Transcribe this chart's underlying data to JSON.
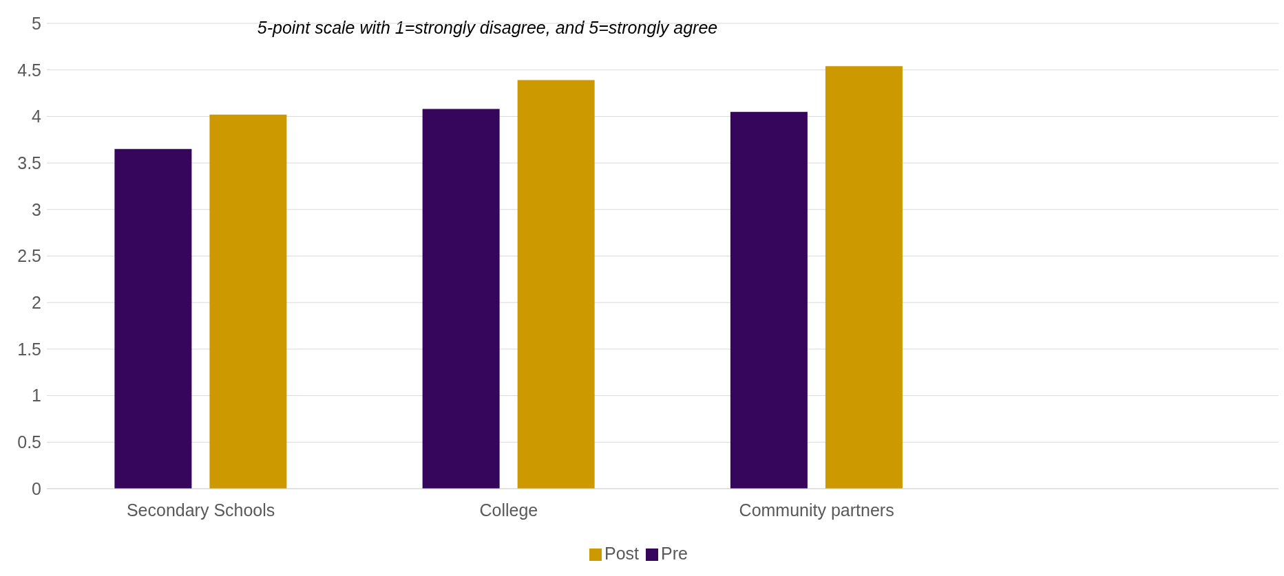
{
  "chart_data": {
    "type": "bar",
    "subtitle": "5-point scale with 1=strongly disagree, and 5=strongly agree",
    "categories": [
      "Secondary  Schools",
      "College",
      "Community  partners",
      null
    ],
    "series": [
      {
        "name": "Pre",
        "color": "#35065b",
        "values": [
          3.65,
          4.08,
          4.05,
          null
        ]
      },
      {
        "name": "Post",
        "color": "#cc9900",
        "values": [
          4.02,
          4.39,
          4.54,
          null
        ]
      }
    ],
    "ylim": [
      0,
      5
    ],
    "yticks": [
      0,
      0.5,
      1,
      1.5,
      2,
      2.5,
      3,
      3.5,
      4,
      4.5,
      5
    ],
    "grid": "y",
    "legend": "bottom"
  }
}
